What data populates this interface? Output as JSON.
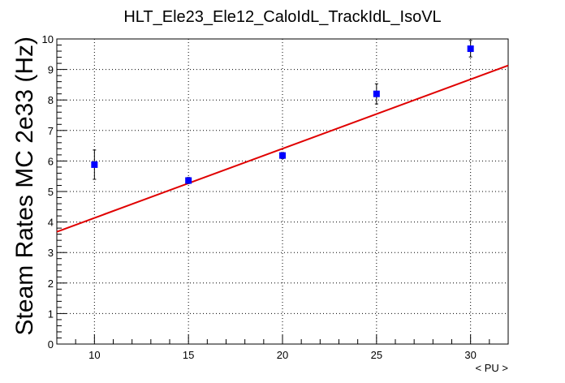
{
  "chart_data": {
    "type": "scatter",
    "title": "HLT_Ele23_Ele12_CaloIdL_TrackIdL_IsoVL",
    "xlabel": "< PU >",
    "ylabel": "Steam Rates MC 2e33 (Hz)",
    "xlim": [
      8,
      32
    ],
    "ylim": [
      0,
      10
    ],
    "x_ticks": [
      "10",
      "15",
      "20",
      "25",
      "30"
    ],
    "y_ticks": [
      "0",
      "1",
      "2",
      "3",
      "4",
      "5",
      "6",
      "7",
      "8",
      "9",
      "10"
    ],
    "grid": true,
    "series": [
      {
        "kind": "points",
        "color": "#0000ff",
        "x": [
          10,
          15,
          20,
          25,
          30
        ],
        "y": [
          5.88,
          5.36,
          6.18,
          8.2,
          9.68
        ],
        "yerr": [
          0.48,
          0.1,
          0.1,
          0.33,
          0.27
        ]
      },
      {
        "kind": "fit-line",
        "color": "#e00000",
        "x": [
          8,
          32
        ],
        "y": [
          3.68,
          9.13
        ]
      }
    ]
  }
}
